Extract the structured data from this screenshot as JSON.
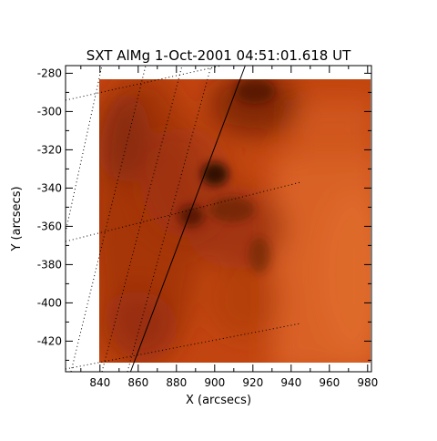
{
  "figure": {
    "title": "SXT AlMg   1-Oct-2001 04:51:01.618 UT",
    "xlabel": "X (arcsecs)",
    "ylabel": "Y (arcsecs)",
    "xticks": [
      "840",
      "860",
      "880",
      "900",
      "920",
      "940",
      "960",
      "980"
    ],
    "yticks": [
      "-280",
      "-300",
      "-320",
      "-340",
      "-360",
      "-380",
      "-400",
      "-420"
    ],
    "xrange": [
      822,
      982
    ],
    "yrange": [
      -436,
      -276
    ],
    "image_extent": {
      "x": [
        840,
        980
      ],
      "y": [
        -432,
        -287
      ]
    },
    "limb_line": [
      [
        856,
        -436
      ],
      [
        916,
        -276
      ]
    ],
    "colors": {
      "background": "#ffffff",
      "image_base": "#c24510",
      "image_bright": "#de6a2a",
      "image_dark": "#2a0c04"
    }
  }
}
